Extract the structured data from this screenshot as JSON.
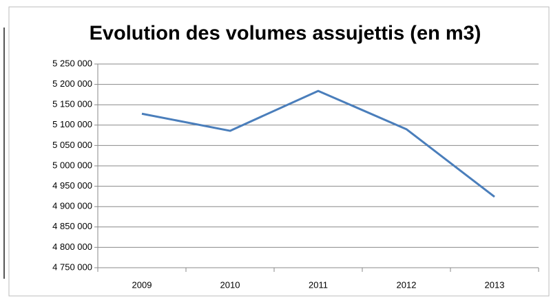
{
  "chart_data": {
    "type": "line",
    "title": "Evolution des volumes assujettis (en m3)",
    "categories": [
      "2009",
      "2010",
      "2011",
      "2012",
      "2013"
    ],
    "series": [
      {
        "name": "Volumes assujettis",
        "color": "#4a7ebb",
        "values": [
          5128000,
          5086000,
          5184000,
          5090000,
          4924000
        ]
      }
    ],
    "ylim": [
      4750000,
      5250000
    ],
    "yticks": [
      {
        "value": 4750000,
        "label": "4 750 000"
      },
      {
        "value": 4800000,
        "label": "4 800 000"
      },
      {
        "value": 4850000,
        "label": "4 850 000"
      },
      {
        "value": 4900000,
        "label": "4 900 000"
      },
      {
        "value": 4950000,
        "label": "4 950 000"
      },
      {
        "value": 5000000,
        "label": "5 000 000"
      },
      {
        "value": 5050000,
        "label": "5 050 000"
      },
      {
        "value": 5100000,
        "label": "5 100 000"
      },
      {
        "value": 5150000,
        "label": "5 150 000"
      },
      {
        "value": 5200000,
        "label": "5 200 000"
      },
      {
        "value": 5250000,
        "label": "5 250 000"
      }
    ],
    "grid": true
  }
}
